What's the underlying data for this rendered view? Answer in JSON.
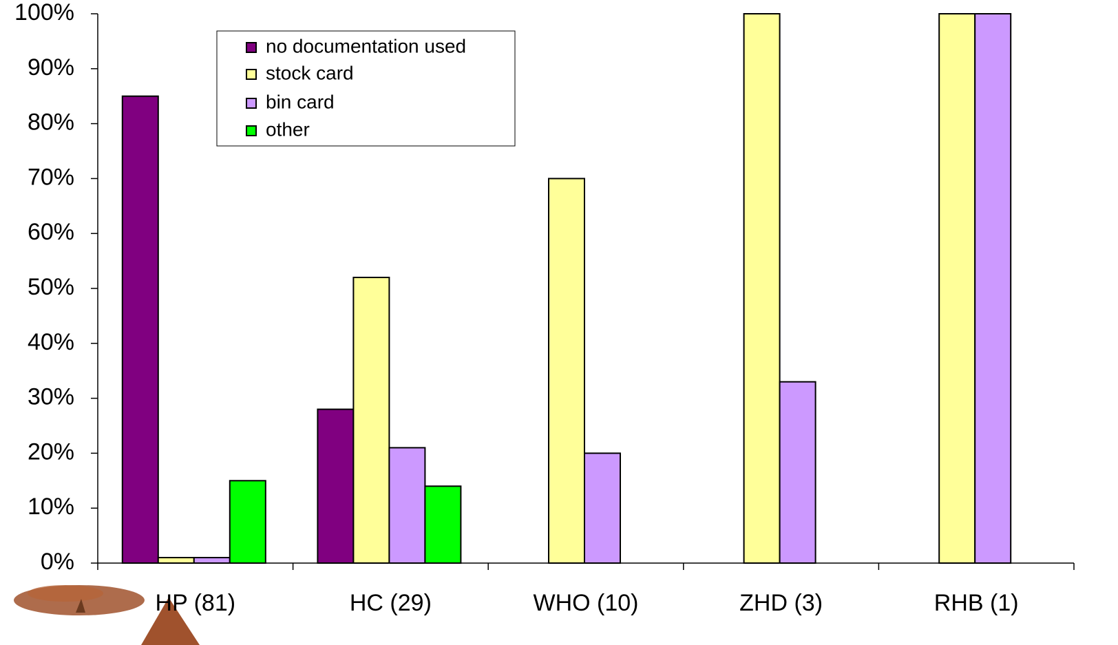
{
  "chart_data": {
    "type": "bar",
    "categories": [
      "HP (81)",
      "HC (29)",
      "WHO (10)",
      "ZHD (3)",
      "RHB (1)"
    ],
    "series": [
      {
        "name": "no documentation used",
        "color": "#800080",
        "values": [
          85,
          28,
          0,
          0,
          0
        ]
      },
      {
        "name": "stock card",
        "color": "#ffff99",
        "values": [
          1,
          52,
          70,
          100,
          100
        ]
      },
      {
        "name": "bin card",
        "color": "#cc99ff",
        "values": [
          1,
          21,
          20,
          33,
          100
        ]
      },
      {
        "name": "other",
        "color": "#00ff00",
        "values": [
          15,
          14,
          0,
          0,
          0
        ]
      }
    ],
    "ylim": [
      0,
      100
    ],
    "yticks": [
      {
        "value": 0,
        "label": "0%"
      },
      {
        "value": 10,
        "label": "10%"
      },
      {
        "value": 20,
        "label": "20%"
      },
      {
        "value": 30,
        "label": "30%"
      },
      {
        "value": 40,
        "label": "40%"
      },
      {
        "value": 50,
        "label": "50%"
      },
      {
        "value": 60,
        "label": "60%"
      },
      {
        "value": 70,
        "label": "70%"
      },
      {
        "value": 80,
        "label": "80%"
      },
      {
        "value": 90,
        "label": "90%"
      },
      {
        "value": 100,
        "label": "100%"
      }
    ],
    "legend": "upper-left"
  }
}
